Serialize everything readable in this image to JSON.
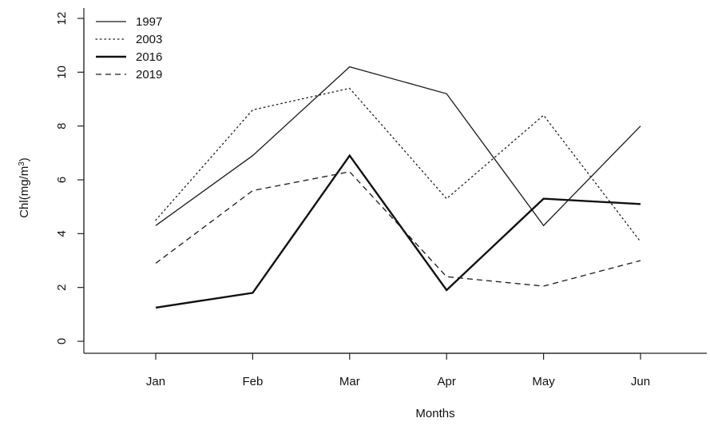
{
  "chart_data": {
    "type": "line",
    "title": "",
    "xlabel": "Months",
    "ylabel": "Chl(mg/m³)",
    "ylabel_base": "Chl(mg/m",
    "ylabel_sup": "3",
    "ylabel_close": ")",
    "categories": [
      "Jan",
      "Feb",
      "Mar",
      "Apr",
      "May",
      "Jun"
    ],
    "ylim": [
      0,
      12
    ],
    "yticks": [
      0,
      2,
      4,
      6,
      8,
      10,
      12
    ],
    "xlim": [
      0,
      7
    ],
    "grid": false,
    "legend_position": "top-left",
    "series": [
      {
        "name": "1997",
        "values": [
          4.3,
          6.9,
          10.2,
          9.2,
          4.3,
          8.0
        ],
        "line_style": "solid",
        "color": "#1a1a1a",
        "line_weight": "thin"
      },
      {
        "name": "2003",
        "values": [
          4.5,
          8.6,
          9.4,
          5.3,
          8.4,
          3.7
        ],
        "line_style": "dotted",
        "color": "#1a1a1a",
        "line_weight": "thin"
      },
      {
        "name": "2016",
        "values": [
          1.25,
          1.8,
          6.9,
          1.9,
          5.3,
          5.1
        ],
        "line_style": "solid",
        "color": "#111111",
        "line_weight": "thick"
      },
      {
        "name": "2019",
        "values": [
          2.9,
          5.6,
          6.3,
          2.4,
          2.05,
          3.0
        ],
        "line_style": "dashed",
        "color": "#1a1a1a",
        "line_weight": "thin"
      }
    ]
  }
}
